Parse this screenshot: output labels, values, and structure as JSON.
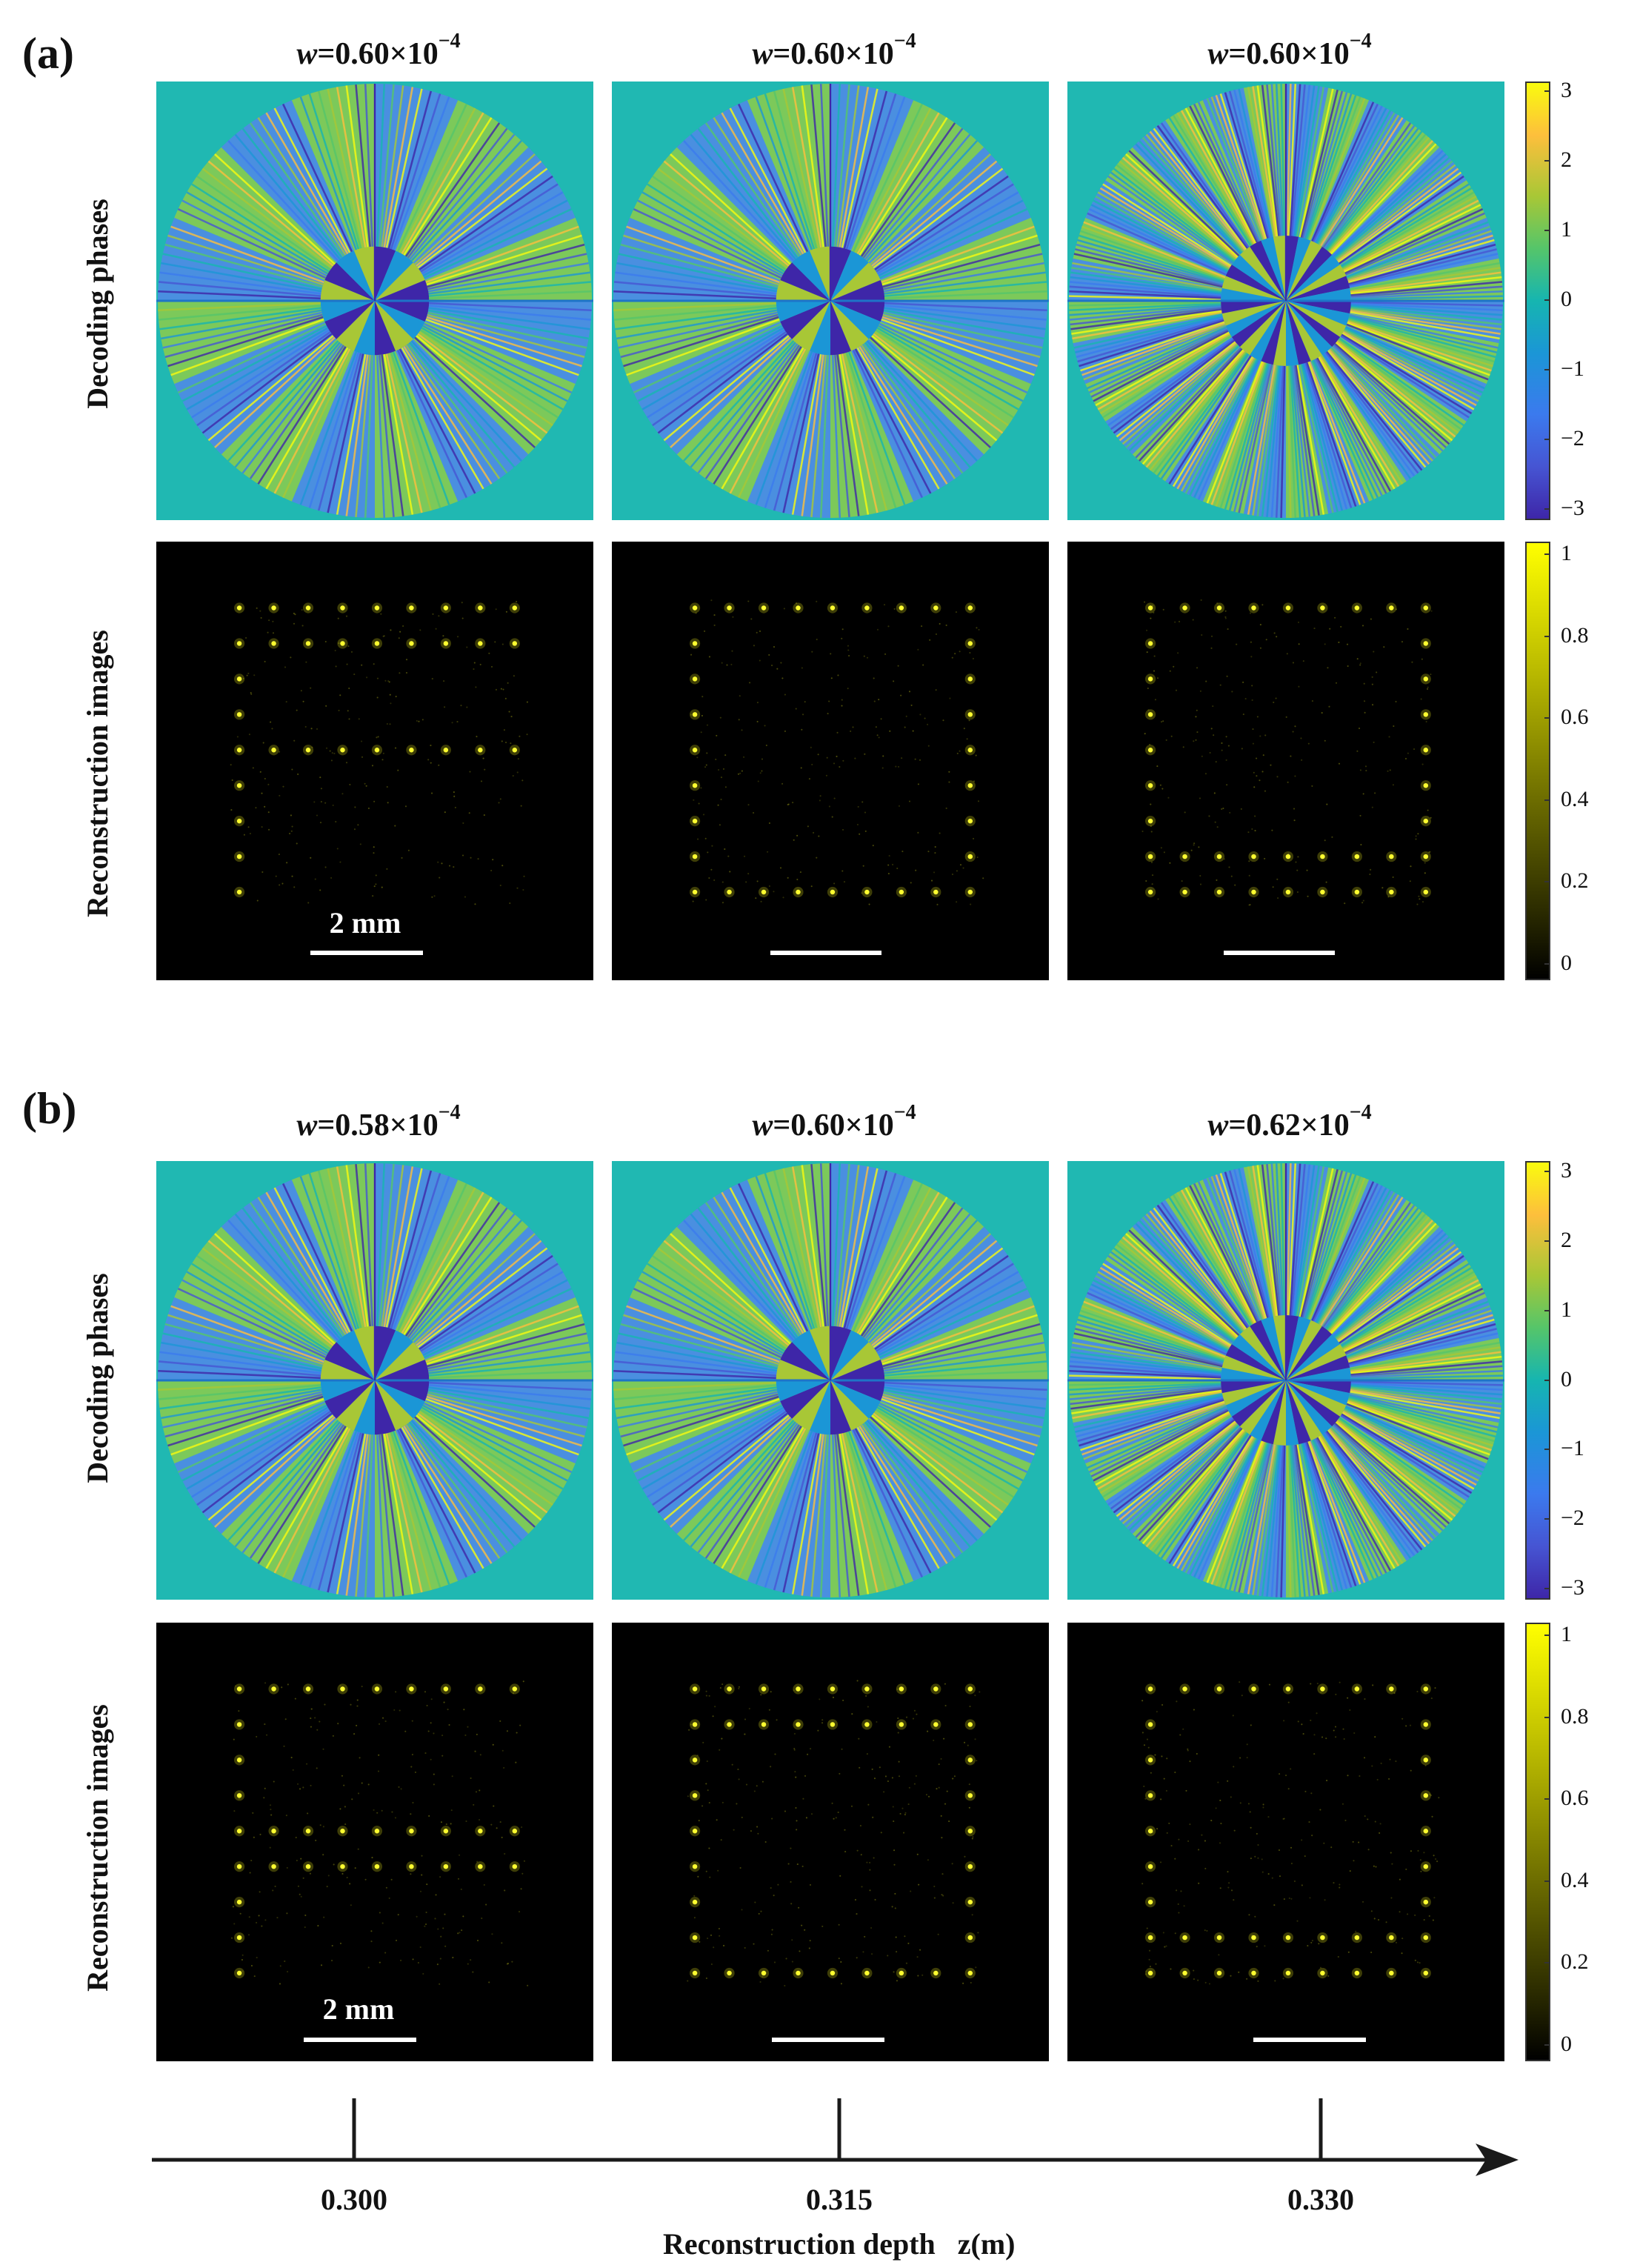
{
  "panels": [
    {
      "label": "(a)",
      "column_titles": [
        {
          "symbol": "w",
          "value": "=0.60×10",
          "exponent": "−4"
        },
        {
          "symbol": "w",
          "value": "=0.60×10",
          "exponent": "−4"
        },
        {
          "symbol": "w",
          "value": "=0.60×10",
          "exponent": "−4"
        }
      ],
      "row_labels": [
        "Decoding phases",
        "Reconstruction images"
      ],
      "scalebar_label": "2 mm"
    },
    {
      "label": "(b)",
      "column_titles": [
        {
          "symbol": "w",
          "value": "=0.58×10",
          "exponent": "−4"
        },
        {
          "symbol": "w",
          "value": "=0.60×10",
          "exponent": "−4"
        },
        {
          "symbol": "w",
          "value": "=0.62×10",
          "exponent": "−4"
        }
      ],
      "row_labels": [
        "Decoding phases",
        "Reconstruction images"
      ],
      "scalebar_label": "2 mm"
    }
  ],
  "colorbars": {
    "phase": {
      "ticks": [
        "3",
        "2",
        "1",
        "0",
        "−1",
        "−2",
        "−3"
      ],
      "colormap": "parula"
    },
    "reconstruction": {
      "ticks": [
        "1",
        "0.8",
        "0.6",
        "0.4",
        "0.2",
        "0"
      ],
      "colormap": "black-yellow"
    }
  },
  "depth_axis": {
    "ticks": [
      "0.300",
      "0.315",
      "0.330"
    ],
    "title": "Reconstruction depth   z(m)"
  },
  "colors": {
    "phase_background": "#20b8b2",
    "recon_background": "#000000",
    "spot": "#ffff30",
    "axis": "#1a1a1a"
  }
}
